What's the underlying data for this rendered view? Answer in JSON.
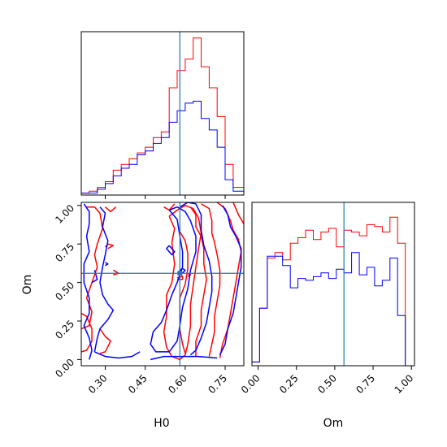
{
  "colors": {
    "series_a": "#ff0000",
    "series_b": "#0000ff",
    "truth": "#1f77b4",
    "axis": "#000000"
  },
  "chart_data": {
    "type": "corner",
    "params": [
      {
        "label": "H0",
        "range": [
          0.21,
          0.82
        ],
        "ticks": [
          0.3,
          0.45,
          0.6,
          0.75
        ],
        "tick_labels": [
          "0.30",
          "0.45",
          "0.60",
          "0.75"
        ],
        "truth": 0.58
      },
      {
        "label": "Om",
        "range": [
          -0.04,
          1.02
        ],
        "ticks": [
          0.0,
          0.25,
          0.5,
          0.75,
          1.0
        ],
        "tick_labels": [
          "0.00",
          "0.25",
          "0.50",
          "0.75",
          "1.00"
        ],
        "truth": 0.56
      }
    ],
    "hist_h0": {
      "edges": [
        0.21,
        0.24,
        0.27,
        0.3,
        0.33,
        0.36,
        0.39,
        0.42,
        0.45,
        0.48,
        0.51,
        0.54,
        0.57,
        0.6,
        0.63,
        0.66,
        0.69,
        0.72,
        0.75,
        0.78,
        0.82
      ],
      "series": [
        {
          "name": "",
          "color_key": "series_a",
          "counts": [
            1,
            2,
            4,
            7,
            13,
            16,
            19,
            22,
            25,
            30,
            33,
            56,
            65,
            71,
            82,
            67,
            56,
            41,
            16,
            4
          ]
        },
        {
          "name": "",
          "color_key": "series_b",
          "counts": [
            1,
            1,
            3,
            6,
            10,
            14,
            16,
            21,
            23,
            27,
            30,
            38,
            44,
            48,
            49,
            40,
            34,
            25,
            8,
            2
          ]
        }
      ]
    },
    "hist_om": {
      "edges": [
        -0.04,
        0.01,
        0.06,
        0.11,
        0.16,
        0.21,
        0.26,
        0.31,
        0.36,
        0.41,
        0.46,
        0.51,
        0.56,
        0.61,
        0.66,
        0.71,
        0.76,
        0.81,
        0.86,
        0.91,
        0.96,
        1.02
      ],
      "series": [
        {
          "name": "",
          "color_key": "series_a",
          "counts": [
            2,
            31,
            58,
            61,
            57,
            66,
            69,
            73,
            68,
            72,
            74,
            64,
            73,
            72,
            70,
            76,
            75,
            72,
            80,
            66,
            0
          ]
        },
        {
          "name": "",
          "color_key": "series_b",
          "counts": [
            2,
            31,
            59,
            59,
            54,
            42,
            47,
            46,
            48,
            50,
            47,
            52,
            50,
            61,
            49,
            53,
            43,
            46,
            58,
            27,
            0
          ]
        }
      ]
    },
    "contours": [
      {
        "color_key": "series_a",
        "paths": [
          [
            [
              0.23,
              0.99
            ],
            [
              0.26,
              0.99
            ],
            [
              0.28,
              0.95
            ],
            [
              0.29,
              0.85
            ],
            [
              0.27,
              0.75
            ],
            [
              0.26,
              0.68
            ],
            [
              0.27,
              0.6
            ],
            [
              0.25,
              0.5
            ],
            [
              0.23,
              0.4
            ],
            [
              0.25,
              0.31
            ],
            [
              0.24,
              0.22
            ],
            [
              0.21,
              0.2
            ]
          ],
          [
            [
              0.21,
              0.3
            ],
            [
              0.23,
              0.28
            ],
            [
              0.25,
              0.2
            ],
            [
              0.25,
              0.12
            ],
            [
              0.23,
              0.06
            ],
            [
              0.21,
              0.05
            ]
          ],
          [
            [
              0.3,
              0.99
            ],
            [
              0.32,
              0.96
            ],
            [
              0.34,
              0.99
            ]
          ],
          [
            [
              0.31,
              0.72
            ],
            [
              0.33,
              0.74
            ],
            [
              0.31,
              0.75
            ],
            [
              0.3,
              0.73
            ]
          ],
          [
            [
              0.33,
              0.58
            ],
            [
              0.35,
              0.56
            ],
            [
              0.33,
              0.55
            ]
          ],
          [
            [
              0.28,
              0.2
            ],
            [
              0.3,
              0.15
            ],
            [
              0.32,
              0.12
            ],
            [
              0.3,
              0.05
            ],
            [
              0.28,
              0.04
            ]
          ],
          [
            [
              0.52,
              0.99
            ],
            [
              0.54,
              0.97
            ],
            [
              0.56,
              1.01
            ]
          ],
          [
            [
              0.54,
              0.93
            ],
            [
              0.56,
              0.85
            ],
            [
              0.55,
              0.76
            ],
            [
              0.56,
              0.62
            ],
            [
              0.55,
              0.5
            ],
            [
              0.53,
              0.42
            ],
            [
              0.53,
              0.28
            ],
            [
              0.52,
              0.18
            ],
            [
              0.53,
              0.08
            ],
            [
              0.55,
              0.02
            ],
            [
              0.58,
              0.0
            ],
            [
              0.6,
              0.03
            ],
            [
              0.61,
              0.1
            ],
            [
              0.62,
              0.22
            ],
            [
              0.62,
              0.36
            ],
            [
              0.63,
              0.48
            ],
            [
              0.64,
              0.6
            ],
            [
              0.65,
              0.72
            ],
            [
              0.66,
              0.82
            ],
            [
              0.65,
              0.92
            ],
            [
              0.63,
              0.98
            ],
            [
              0.6,
              1.0
            ],
            [
              0.57,
              0.97
            ],
            [
              0.54,
              0.93
            ]
          ],
          [
            [
              0.58,
              0.83
            ],
            [
              0.6,
              0.77
            ],
            [
              0.61,
              0.69
            ],
            [
              0.61,
              0.59
            ],
            [
              0.6,
              0.49
            ],
            [
              0.58,
              0.4
            ],
            [
              0.58,
              0.3
            ],
            [
              0.58,
              0.2
            ],
            [
              0.59,
              0.1
            ],
            [
              0.6,
              0.04
            ]
          ],
          [
            [
              0.62,
              0.99
            ],
            [
              0.64,
              0.94
            ],
            [
              0.64,
              0.86
            ],
            [
              0.66,
              0.8
            ],
            [
              0.67,
              0.72
            ],
            [
              0.67,
              0.62
            ],
            [
              0.68,
              0.52
            ],
            [
              0.67,
              0.42
            ],
            [
              0.66,
              0.32
            ],
            [
              0.66,
              0.22
            ],
            [
              0.64,
              0.12
            ],
            [
              0.64,
              0.02
            ]
          ],
          [
            [
              0.66,
              1.01
            ],
            [
              0.69,
              0.98
            ],
            [
              0.7,
              0.9
            ],
            [
              0.7,
              0.82
            ],
            [
              0.71,
              0.76
            ],
            [
              0.72,
              0.68
            ],
            [
              0.73,
              0.58
            ],
            [
              0.73,
              0.48
            ],
            [
              0.72,
              0.38
            ],
            [
              0.71,
              0.28
            ],
            [
              0.71,
              0.18
            ],
            [
              0.7,
              0.1
            ],
            [
              0.69,
              0.02
            ]
          ],
          [
            [
              0.72,
              1.02
            ],
            [
              0.75,
              0.98
            ],
            [
              0.77,
              0.9
            ],
            [
              0.78,
              0.84
            ],
            [
              0.8,
              0.78
            ],
            [
              0.81,
              0.7
            ],
            [
              0.8,
              0.6
            ],
            [
              0.79,
              0.5
            ],
            [
              0.78,
              0.4
            ],
            [
              0.77,
              0.3
            ],
            [
              0.76,
              0.2
            ],
            [
              0.74,
              0.1
            ],
            [
              0.73,
              0.01
            ]
          ],
          [
            [
              0.57,
              0.53
            ],
            [
              0.59,
              0.54
            ],
            [
              0.59,
              0.52
            ],
            [
              0.57,
              0.52
            ]
          ],
          [
            [
              0.61,
              0.54
            ],
            [
              0.62,
              0.55
            ],
            [
              0.61,
              0.56
            ]
          ],
          [
            [
              0.78,
              1.02
            ],
            [
              0.8,
              0.94
            ],
            [
              0.82,
              0.88
            ]
          ]
        ]
      },
      {
        "color_key": "series_b",
        "paths": [
          [
            [
              0.22,
              1.01
            ],
            [
              0.24,
              0.96
            ],
            [
              0.24,
              0.88
            ],
            [
              0.23,
              0.8
            ],
            [
              0.24,
              0.7
            ],
            [
              0.22,
              0.62
            ],
            [
              0.22,
              0.5
            ],
            [
              0.24,
              0.4
            ],
            [
              0.24,
              0.3
            ],
            [
              0.22,
              0.22
            ],
            [
              0.24,
              0.14
            ],
            [
              0.25,
              0.06
            ],
            [
              0.24,
              0.0
            ]
          ],
          [
            [
              0.28,
              0.99
            ],
            [
              0.3,
              0.95
            ],
            [
              0.29,
              0.86
            ],
            [
              0.31,
              0.77
            ],
            [
              0.3,
              0.68
            ],
            [
              0.29,
              0.6
            ],
            [
              0.28,
              0.5
            ],
            [
              0.29,
              0.42
            ],
            [
              0.31,
              0.36
            ],
            [
              0.33,
              0.32
            ],
            [
              0.31,
              0.26
            ],
            [
              0.28,
              0.2
            ],
            [
              0.27,
              0.14
            ],
            [
              0.26,
              0.05
            ]
          ],
          [
            [
              0.26,
              0.05
            ],
            [
              0.3,
              0.02
            ],
            [
              0.35,
              0.01
            ],
            [
              0.4,
              0.02
            ],
            [
              0.43,
              0.05
            ]
          ],
          [
            [
              0.47,
              0.0
            ],
            [
              0.52,
              0.02
            ],
            [
              0.58,
              0.02
            ],
            [
              0.65,
              0.02
            ],
            [
              0.72,
              0.01
            ]
          ],
          [
            [
              0.26,
              0.58
            ],
            [
              0.27,
              0.52
            ],
            [
              0.25,
              0.5
            ]
          ],
          [
            [
              0.3,
              0.63
            ],
            [
              0.31,
              0.62
            ],
            [
              0.3,
              0.61
            ]
          ],
          [
            [
              0.54,
              0.97
            ],
            [
              0.57,
              0.91
            ],
            [
              0.58,
              0.8
            ],
            [
              0.59,
              0.7
            ],
            [
              0.59,
              0.6
            ],
            [
              0.57,
              0.5
            ],
            [
              0.55,
              0.42
            ],
            [
              0.53,
              0.32
            ],
            [
              0.51,
              0.24
            ],
            [
              0.48,
              0.18
            ],
            [
              0.47,
              0.1
            ],
            [
              0.49,
              0.05
            ],
            [
              0.54,
              0.05
            ],
            [
              0.57,
              0.12
            ],
            [
              0.58,
              0.22
            ],
            [
              0.59,
              0.34
            ],
            [
              0.61,
              0.46
            ],
            [
              0.62,
              0.58
            ],
            [
              0.64,
              0.7
            ],
            [
              0.64,
              0.8
            ],
            [
              0.62,
              0.9
            ],
            [
              0.6,
              0.96
            ],
            [
              0.57,
              0.99
            ],
            [
              0.54,
              0.97
            ]
          ],
          [
            [
              0.58,
              0.99
            ],
            [
              0.61,
              1.02
            ],
            [
              0.64,
              1.01
            ],
            [
              0.66,
              0.94
            ],
            [
              0.66,
              0.84
            ],
            [
              0.67,
              0.74
            ],
            [
              0.69,
              0.64
            ],
            [
              0.7,
              0.54
            ],
            [
              0.7,
              0.44
            ],
            [
              0.69,
              0.34
            ],
            [
              0.68,
              0.24
            ],
            [
              0.66,
              0.14
            ],
            [
              0.64,
              0.06
            ],
            [
              0.62,
              0.03
            ]
          ],
          [
            [
              0.54,
              0.74
            ],
            [
              0.56,
              0.7
            ],
            [
              0.55,
              0.68
            ],
            [
              0.53,
              0.72
            ],
            [
              0.54,
              0.74
            ]
          ],
          [
            [
              0.74,
              1.0
            ],
            [
              0.76,
              0.94
            ],
            [
              0.77,
              0.86
            ],
            [
              0.79,
              0.8
            ],
            [
              0.81,
              0.72
            ],
            [
              0.81,
              0.6
            ],
            [
              0.8,
              0.5
            ],
            [
              0.79,
              0.4
            ],
            [
              0.78,
              0.3
            ],
            [
              0.76,
              0.2
            ],
            [
              0.75,
              0.1
            ],
            [
              0.73,
              0.03
            ]
          ],
          [
            [
              0.59,
              0.56
            ],
            [
              0.6,
              0.58
            ],
            [
              0.59,
              0.59
            ],
            [
              0.58,
              0.58
            ],
            [
              0.59,
              0.56
            ]
          ]
        ]
      }
    ]
  }
}
